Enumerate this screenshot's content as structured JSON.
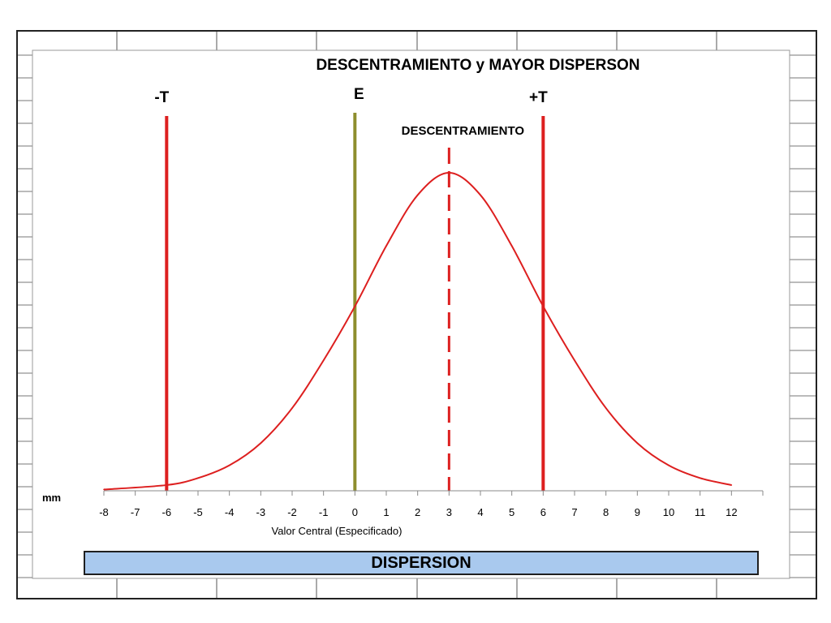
{
  "chart_data": {
    "type": "line",
    "title": "DESCENTRAMIENTO y MAYOR DISPERSON",
    "xlabel": "Valor Central (Especificado)",
    "unit_label": "mm",
    "xlim": [
      -8,
      12
    ],
    "ticks": [
      "-8",
      "-7",
      "-6",
      "-5",
      "-4",
      "-3",
      "-2",
      "-1",
      "0",
      "1",
      "2",
      "3",
      "4",
      "5",
      "6",
      "7",
      "8",
      "9",
      "10",
      "11",
      "12"
    ],
    "series": [
      {
        "color": "#dd1f1f",
        "x": [
          -8,
          -6,
          -5,
          -4,
          -3,
          -2,
          -1,
          0,
          1,
          2,
          3,
          4,
          5,
          6,
          7,
          8,
          9,
          10,
          11,
          12
        ],
        "y": [
          0.004,
          0.018,
          0.04,
          0.08,
          0.15,
          0.26,
          0.41,
          0.58,
          0.77,
          0.93,
          1.0,
          0.93,
          0.77,
          0.58,
          0.41,
          0.26,
          0.15,
          0.08,
          0.04,
          0.018
        ]
      }
    ],
    "vertical_lines": [
      {
        "x": -6,
        "label": "-T",
        "color": "#dd1f1f",
        "style": "solid"
      },
      {
        "x": 0,
        "label": "E",
        "color": "#8e8e2e",
        "style": "solid"
      },
      {
        "x": 6,
        "label": "+T",
        "color": "#dd1f1f",
        "style": "solid"
      },
      {
        "x": 3,
        "label": "DESCENTRAMIENTO",
        "color": "#dd1f1f",
        "style": "dashed"
      }
    ]
  },
  "footer": {
    "label": "DISPERSION",
    "color": "#a9c9ee"
  }
}
